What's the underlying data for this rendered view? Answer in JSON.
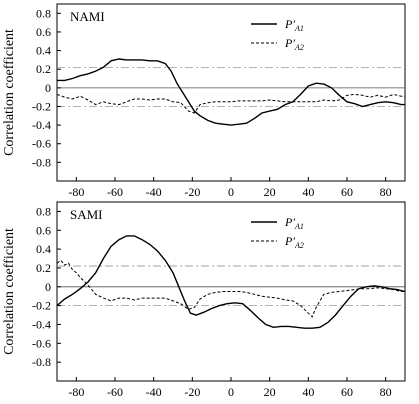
{
  "chart_data": [
    {
      "type": "line",
      "panel_label": "NAMI",
      "ylabel": "Correlation coefficient",
      "xlim": [
        -90,
        90
      ],
      "ylim": [
        -1.0,
        0.9
      ],
      "x_ticks": [
        "-80",
        "-60",
        "-40",
        "-20",
        "0",
        "20",
        "40",
        "60",
        "80"
      ],
      "y_ticks": [
        "0.8",
        "0.6",
        "0.4",
        "0.2",
        "0",
        "-0.2",
        "-0.4",
        "-0.6",
        "-0.8"
      ],
      "reference_lines": [
        0.22,
        -0.2
      ],
      "legend": {
        "entries": [
          {
            "main": "P′",
            "sub": "A1",
            "style": "solid"
          },
          {
            "main": "P′",
            "sub": "A2",
            "style": "dashed"
          }
        ],
        "placement": "top-right"
      },
      "series": [
        {
          "style": "solid",
          "x": [
            -90,
            -86,
            -82,
            -78,
            -74,
            -70,
            -66,
            -62,
            -58,
            -54,
            -50,
            -46,
            -42,
            -38,
            -34,
            -31,
            -28,
            -25,
            -22,
            -19,
            -16,
            -12,
            -8,
            -4,
            0,
            4,
            8,
            12,
            16,
            20,
            24,
            28,
            32,
            36,
            40,
            44,
            48,
            52,
            56,
            60,
            64,
            68,
            72,
            76,
            80,
            84,
            88,
            90
          ],
          "y": [
            0.08,
            0.08,
            0.1,
            0.13,
            0.15,
            0.18,
            0.22,
            0.29,
            0.31,
            0.3,
            0.3,
            0.3,
            0.29,
            0.29,
            0.26,
            0.18,
            0.05,
            -0.05,
            -0.15,
            -0.25,
            -0.3,
            -0.35,
            -0.38,
            -0.39,
            -0.4,
            -0.39,
            -0.38,
            -0.33,
            -0.27,
            -0.25,
            -0.23,
            -0.18,
            -0.15,
            -0.07,
            0.02,
            0.05,
            0.04,
            0.0,
            -0.08,
            -0.15,
            -0.17,
            -0.2,
            -0.18,
            -0.16,
            -0.15,
            -0.16,
            -0.18,
            -0.18
          ]
        },
        {
          "style": "dashed",
          "x": [
            -90,
            -86,
            -82,
            -78,
            -74,
            -70,
            -66,
            -62,
            -58,
            -54,
            -50,
            -46,
            -42,
            -38,
            -34,
            -30,
            -26,
            -22,
            -19,
            -16,
            -12,
            -8,
            -4,
            0,
            4,
            8,
            12,
            16,
            20,
            24,
            28,
            32,
            36,
            40,
            44,
            48,
            52,
            56,
            60,
            64,
            68,
            72,
            76,
            80,
            84,
            88,
            90
          ],
          "y": [
            -0.07,
            -0.1,
            -0.12,
            -0.09,
            -0.13,
            -0.18,
            -0.15,
            -0.17,
            -0.18,
            -0.15,
            -0.12,
            -0.12,
            -0.13,
            -0.12,
            -0.12,
            -0.15,
            -0.16,
            -0.25,
            -0.27,
            -0.18,
            -0.16,
            -0.15,
            -0.15,
            -0.15,
            -0.14,
            -0.14,
            -0.14,
            -0.14,
            -0.13,
            -0.14,
            -0.15,
            -0.15,
            -0.15,
            -0.15,
            -0.15,
            -0.13,
            -0.14,
            -0.13,
            -0.08,
            -0.07,
            -0.08,
            -0.1,
            -0.08,
            -0.1,
            -0.07,
            -0.09,
            -0.09
          ]
        }
      ]
    },
    {
      "type": "line",
      "panel_label": "SAMI",
      "ylabel": "Correlation coefficient",
      "xlim": [
        -90,
        90
      ],
      "ylim": [
        -1.0,
        0.9
      ],
      "x_ticks": [
        "-80",
        "-60",
        "-40",
        "-20",
        "0",
        "20",
        "40",
        "60",
        "80"
      ],
      "y_ticks": [
        "0.8",
        "0.6",
        "0.4",
        "0.2",
        "0",
        "-0.2",
        "-0.4",
        "-0.6",
        "-0.8"
      ],
      "reference_lines": [
        0.22,
        -0.2
      ],
      "legend": {
        "entries": [
          {
            "main": "P′",
            "sub": "A1",
            "style": "solid"
          },
          {
            "main": "P′",
            "sub": "A2",
            "style": "dashed"
          }
        ],
        "placement": "top-right"
      },
      "series": [
        {
          "style": "solid",
          "x": [
            -90,
            -86,
            -82,
            -78,
            -74,
            -70,
            -66,
            -62,
            -58,
            -54,
            -50,
            -46,
            -42,
            -38,
            -34,
            -30,
            -27,
            -24,
            -21,
            -18,
            -14,
            -10,
            -6,
            -2,
            2,
            6,
            10,
            14,
            18,
            22,
            26,
            30,
            34,
            38,
            42,
            46,
            50,
            54,
            58,
            62,
            66,
            70,
            74,
            78,
            82,
            86,
            90
          ],
          "y": [
            -0.2,
            -0.13,
            -0.08,
            -0.02,
            0.05,
            0.15,
            0.3,
            0.43,
            0.5,
            0.54,
            0.54,
            0.5,
            0.45,
            0.38,
            0.28,
            0.15,
            0.0,
            -0.15,
            -0.28,
            -0.3,
            -0.27,
            -0.23,
            -0.2,
            -0.18,
            -0.17,
            -0.18,
            -0.25,
            -0.33,
            -0.4,
            -0.43,
            -0.42,
            -0.42,
            -0.43,
            -0.44,
            -0.44,
            -0.43,
            -0.38,
            -0.3,
            -0.2,
            -0.1,
            -0.02,
            0.0,
            0.01,
            0.0,
            -0.02,
            -0.03,
            -0.05
          ]
        },
        {
          "style": "dashed",
          "x": [
            -90,
            -88,
            -86,
            -84,
            -82,
            -80,
            -78,
            -76,
            -74,
            -72,
            -70,
            -66,
            -62,
            -58,
            -54,
            -50,
            -46,
            -42,
            -38,
            -34,
            -30,
            -26,
            -22,
            -19,
            -16,
            -12,
            -8,
            -4,
            0,
            4,
            8,
            12,
            16,
            20,
            24,
            28,
            32,
            36,
            40,
            42,
            44,
            48,
            52,
            56,
            60,
            64,
            68,
            72,
            76,
            80,
            84,
            88,
            90
          ],
          "y": [
            0.25,
            0.28,
            0.23,
            0.25,
            0.18,
            0.15,
            0.1,
            0.06,
            0.02,
            -0.03,
            -0.08,
            -0.12,
            -0.15,
            -0.12,
            -0.12,
            -0.14,
            -0.12,
            -0.12,
            -0.12,
            -0.12,
            -0.15,
            -0.18,
            -0.24,
            -0.22,
            -0.13,
            -0.08,
            -0.06,
            -0.05,
            -0.05,
            -0.05,
            -0.06,
            -0.08,
            -0.1,
            -0.11,
            -0.12,
            -0.14,
            -0.15,
            -0.2,
            -0.28,
            -0.32,
            -0.22,
            -0.08,
            -0.06,
            -0.05,
            -0.04,
            -0.03,
            -0.02,
            -0.02,
            -0.01,
            -0.02,
            -0.03,
            -0.05,
            -0.05
          ]
        }
      ]
    }
  ]
}
